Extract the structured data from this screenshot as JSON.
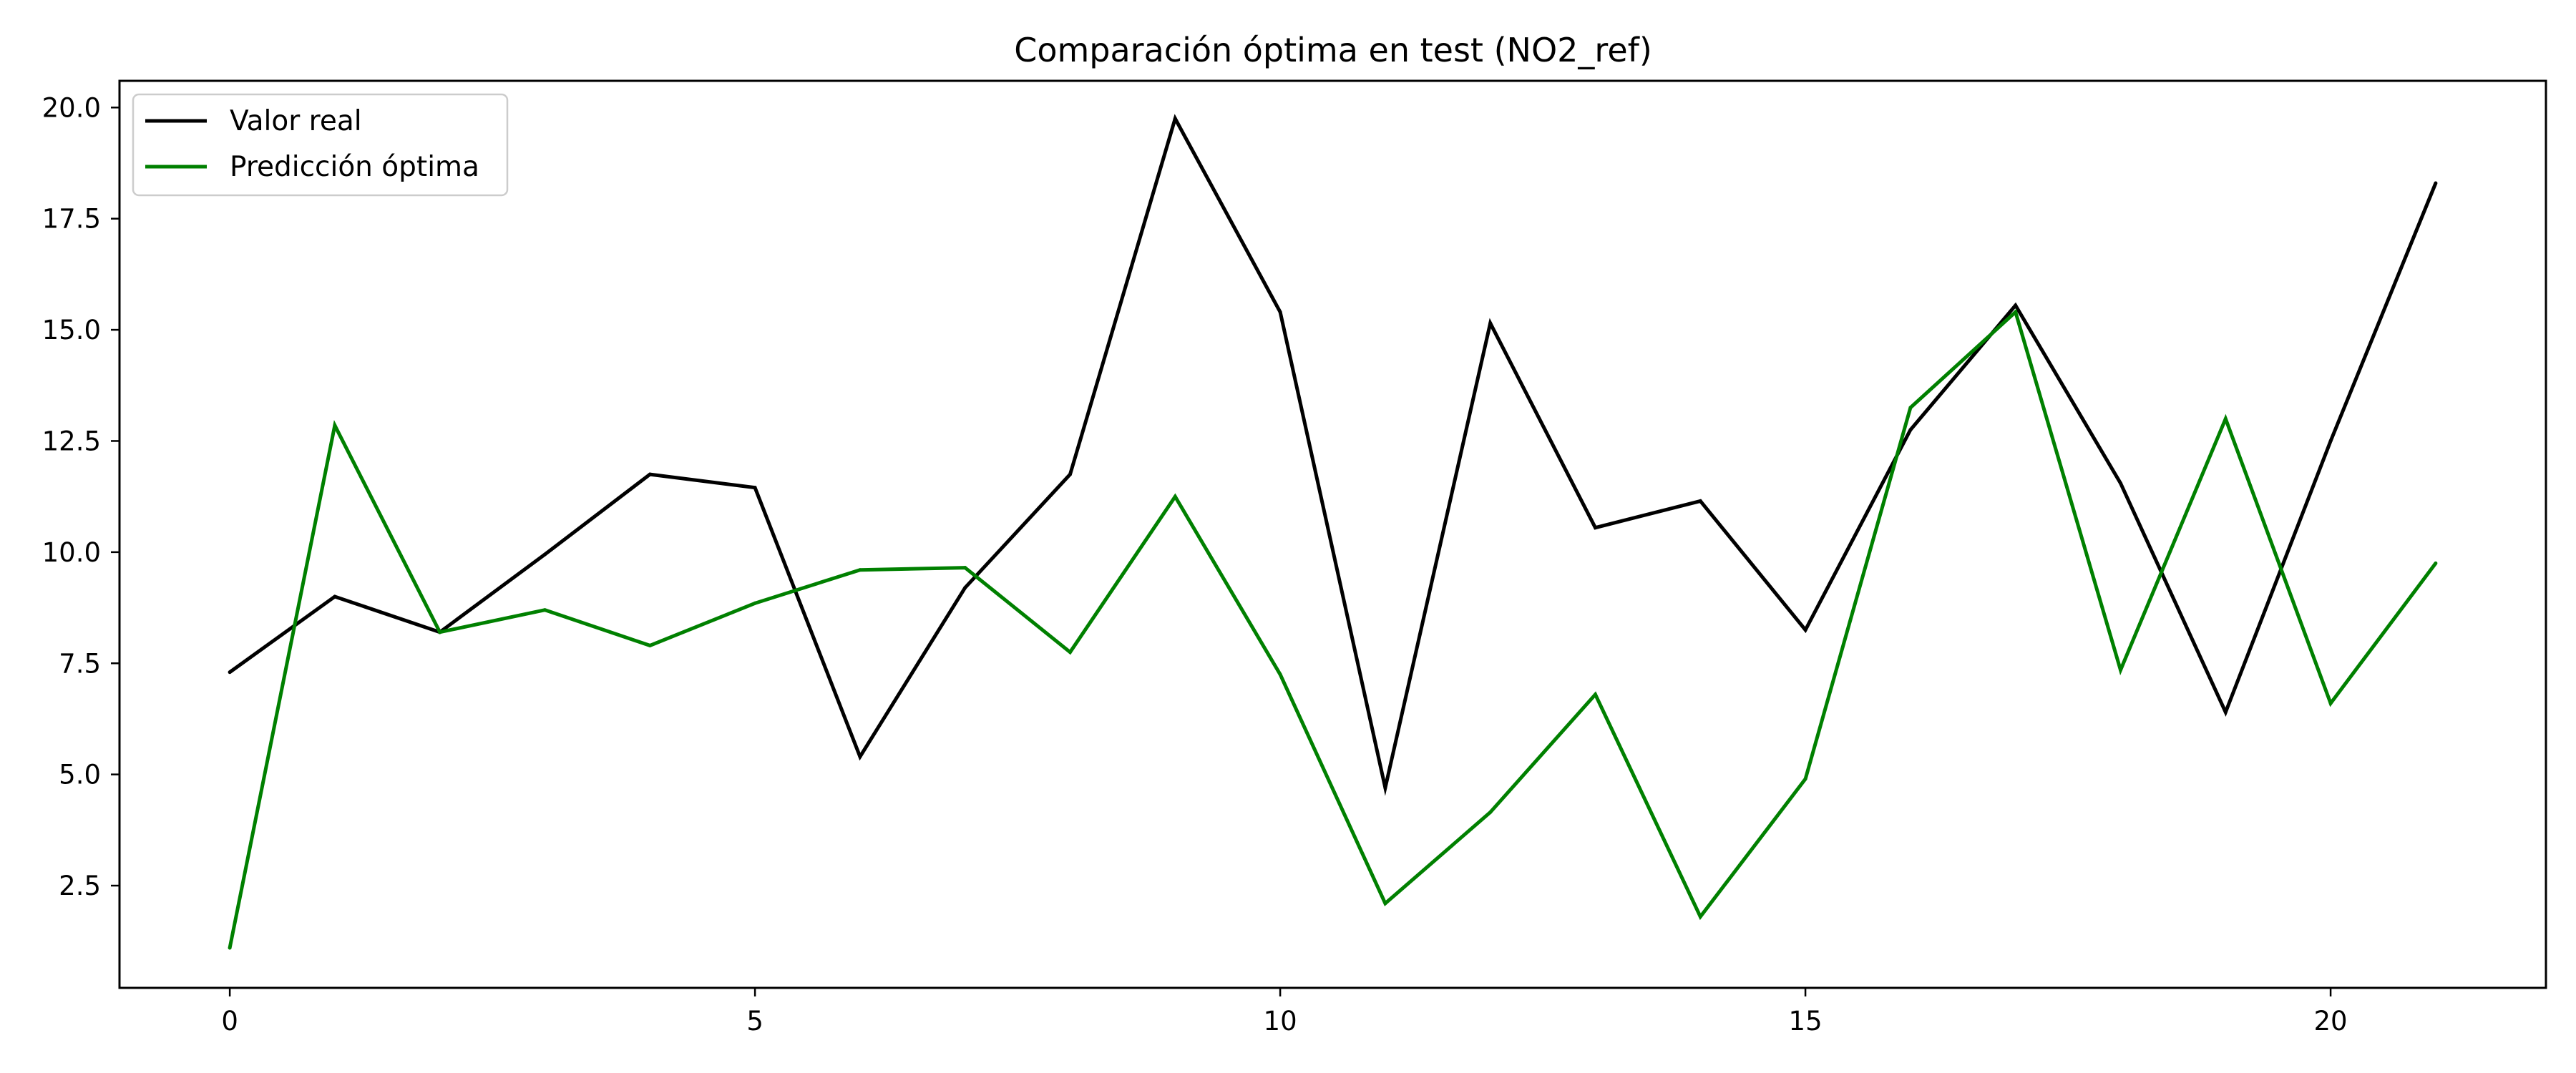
{
  "chart_data": {
    "type": "line",
    "title": "Comparación óptima en test (NO2_ref)",
    "xlabel": "",
    "ylabel": "",
    "xlim": [
      -1.05,
      22.05
    ],
    "ylim": [
      0.2,
      20.6
    ],
    "x_ticks": [
      0,
      5,
      10,
      15,
      20
    ],
    "x_tick_labels": [
      "0",
      "5",
      "10",
      "15",
      "20"
    ],
    "y_ticks": [
      2.5,
      5.0,
      7.5,
      10.0,
      12.5,
      15.0,
      17.5,
      20.0
    ],
    "y_tick_labels": [
      "2.5",
      "5.0",
      "7.5",
      "10.0",
      "12.5",
      "15.0",
      "17.5",
      "20.0"
    ],
    "grid": false,
    "legend_position": "upper-left",
    "x": [
      0,
      1,
      2,
      3,
      4,
      5,
      6,
      7,
      8,
      9,
      10,
      11,
      12,
      13,
      14,
      15,
      16,
      17,
      18,
      19,
      20,
      21
    ],
    "series": [
      {
        "name": "Valor real",
        "color": "#000000",
        "values": [
          7.3,
          9.0,
          8.2,
          9.95,
          11.75,
          11.45,
          5.4,
          9.2,
          11.75,
          19.75,
          15.4,
          4.7,
          15.15,
          10.55,
          11.15,
          8.25,
          12.75,
          15.55,
          11.55,
          6.4,
          12.5,
          18.3
        ]
      },
      {
        "name": "Predicción óptima",
        "color": "#008000",
        "values": [
          1.1,
          12.85,
          8.2,
          8.7,
          7.9,
          8.85,
          9.6,
          9.65,
          7.75,
          11.25,
          7.25,
          2.1,
          4.15,
          6.8,
          1.8,
          4.9,
          13.25,
          15.4,
          7.35,
          13.0,
          6.6,
          9.75
        ]
      }
    ]
  }
}
